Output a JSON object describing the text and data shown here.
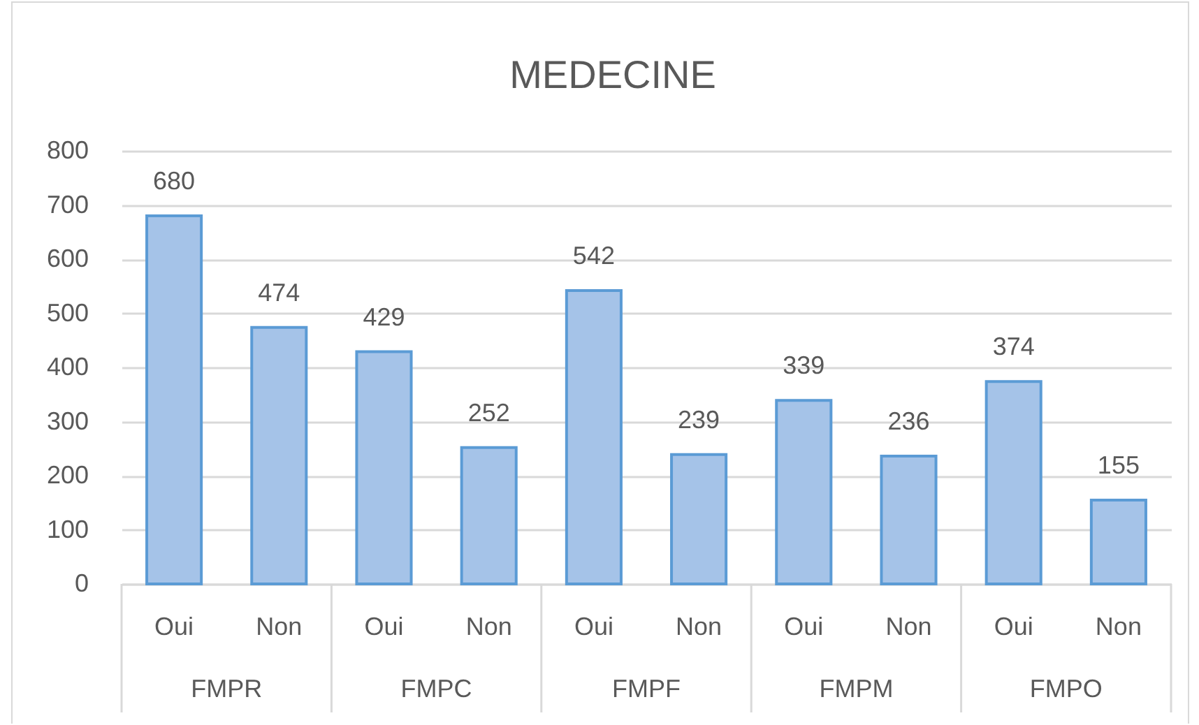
{
  "chart_data": {
    "type": "bar",
    "title": "MEDECINE",
    "categories": [
      "Oui",
      "Non",
      "Oui",
      "Non",
      "Oui",
      "Non",
      "Oui",
      "Non",
      "Oui",
      "Non"
    ],
    "values": [
      680,
      474,
      429,
      252,
      542,
      239,
      339,
      236,
      374,
      155
    ],
    "color": "#a5c3e8",
    "ylim": [
      0,
      800
    ],
    "yticks": [
      0,
      100,
      200,
      300,
      400,
      500,
      600,
      700,
      800
    ],
    "grid": "y",
    "data_labels": true,
    "annotations": [
      "FMPR",
      "FMPC",
      "FMPF",
      "FMPM",
      "FMPO"
    ]
  }
}
